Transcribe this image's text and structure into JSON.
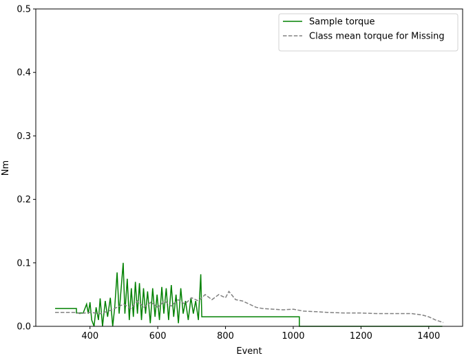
{
  "chart_data": {
    "type": "line",
    "xlabel": "Event",
    "ylabel": "Nm",
    "xlim": [
      240,
      1500
    ],
    "ylim": [
      0,
      0.5
    ],
    "xticks": [
      400,
      600,
      800,
      1000,
      1200,
      1400
    ],
    "yticks": [
      {
        "value": 0,
        "label": "0.0"
      },
      0.1,
      0.2,
      0.3,
      0.4,
      0.5
    ],
    "legend": "upper right",
    "series": [
      {
        "name": "Sample torque",
        "color": "#008000",
        "dash": "solid",
        "x": [
          297,
          360,
          360,
          380,
          390,
          395,
          400,
          405,
          412,
          418,
          425,
          430,
          437,
          445,
          452,
          460,
          467,
          473,
          480,
          486,
          492,
          498,
          503,
          510,
          516,
          522,
          528,
          534,
          540,
          546,
          552,
          558,
          564,
          570,
          578,
          585,
          592,
          598,
          605,
          612,
          618,
          625,
          632,
          640,
          647,
          654,
          661,
          668,
          675,
          682,
          690,
          698,
          705,
          712,
          720,
          727,
          730,
          1018,
          1018,
          1440
        ],
        "values": [
          0.028,
          0.028,
          0.021,
          0.021,
          0.035,
          0.02,
          0.038,
          0.01,
          0.0,
          0.03,
          0.01,
          0.044,
          0.0,
          0.04,
          0.015,
          0.045,
          0.0,
          0.03,
          0.085,
          0.02,
          0.06,
          0.1,
          0.02,
          0.075,
          0.01,
          0.06,
          0.015,
          0.07,
          0.02,
          0.068,
          0.01,
          0.06,
          0.02,
          0.055,
          0.005,
          0.06,
          0.015,
          0.05,
          0.01,
          0.062,
          0.02,
          0.06,
          0.01,
          0.065,
          0.015,
          0.05,
          0.005,
          0.06,
          0.02,
          0.04,
          0.01,
          0.045,
          0.02,
          0.04,
          0.01,
          0.082,
          0.015,
          0.015,
          0.0,
          0.0
        ]
      },
      {
        "name": "Class mean torque for Missing",
        "color": "#808080",
        "dash": "dashed",
        "x": [
          297,
          360,
          370,
          400,
          430,
          460,
          480,
          500,
          520,
          540,
          560,
          580,
          600,
          620,
          640,
          660,
          680,
          700,
          720,
          740,
          760,
          780,
          800,
          810,
          830,
          850,
          870,
          890,
          910,
          940,
          970,
          1000,
          1030,
          1070,
          1100,
          1150,
          1200,
          1250,
          1300,
          1350,
          1380,
          1400,
          1420,
          1443
        ],
        "values": [
          0.022,
          0.022,
          0.02,
          0.022,
          0.02,
          0.025,
          0.03,
          0.035,
          0.028,
          0.04,
          0.03,
          0.038,
          0.03,
          0.04,
          0.032,
          0.042,
          0.035,
          0.045,
          0.04,
          0.05,
          0.042,
          0.05,
          0.045,
          0.055,
          0.042,
          0.04,
          0.035,
          0.03,
          0.028,
          0.027,
          0.026,
          0.027,
          0.024,
          0.023,
          0.022,
          0.021,
          0.021,
          0.02,
          0.02,
          0.02,
          0.018,
          0.015,
          0.01,
          0.006
        ]
      }
    ]
  }
}
